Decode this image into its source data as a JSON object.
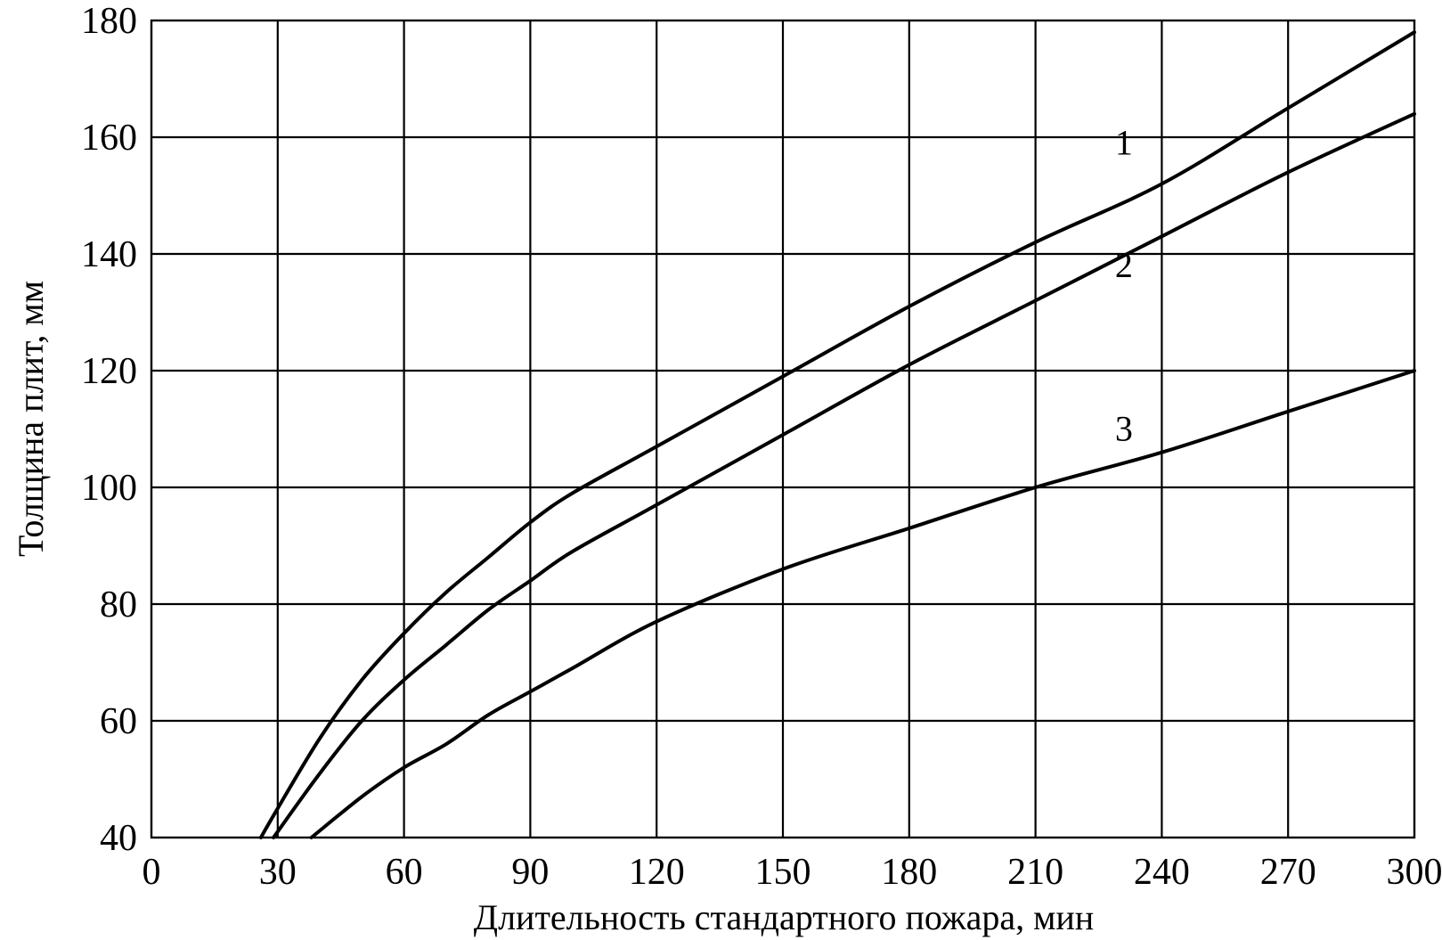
{
  "chart_data": {
    "type": "line",
    "title": "",
    "xlabel": "Длительность стандартного пожара, мин",
    "ylabel": "Толщина плит, мм",
    "xlim": [
      0,
      300
    ],
    "ylim": [
      40,
      180
    ],
    "x_ticks": [
      0,
      30,
      60,
      90,
      120,
      150,
      180,
      210,
      240,
      270,
      300
    ],
    "y_ticks": [
      40,
      60,
      80,
      100,
      120,
      140,
      160,
      180
    ],
    "x_tick_labels": [
      "0",
      "30",
      "60",
      "90",
      "120",
      "150",
      "180",
      "210",
      "240",
      "270",
      "300"
    ],
    "y_tick_labels": [
      "40",
      "60",
      "80",
      "100",
      "120",
      "140",
      "160",
      "180"
    ],
    "grid": true,
    "legend": "none",
    "series": [
      {
        "label": "1",
        "color": "#000000",
        "x": [
          26,
          30,
          40,
          50,
          60,
          70,
          80,
          90,
          100,
          120,
          150,
          180,
          210,
          240,
          270,
          300
        ],
        "y": [
          40,
          45,
          57,
          67,
          75,
          82,
          88,
          94,
          99,
          107,
          119,
          131,
          142,
          152,
          165,
          178
        ]
      },
      {
        "label": "2",
        "color": "#000000",
        "x": [
          29,
          40,
          50,
          60,
          70,
          80,
          90,
          100,
          120,
          150,
          180,
          210,
          240,
          270,
          300
        ],
        "y": [
          40,
          51,
          60,
          67,
          73,
          79,
          84,
          89,
          97,
          109,
          121,
          132,
          143,
          154,
          164
        ]
      },
      {
        "label": "3",
        "color": "#000000",
        "x": [
          38,
          50,
          60,
          70,
          80,
          90,
          100,
          120,
          150,
          180,
          210,
          240,
          270,
          300
        ],
        "y": [
          40,
          47,
          52,
          56,
          61,
          65,
          69,
          77,
          86,
          93,
          100,
          106,
          113,
          120
        ]
      }
    ]
  }
}
